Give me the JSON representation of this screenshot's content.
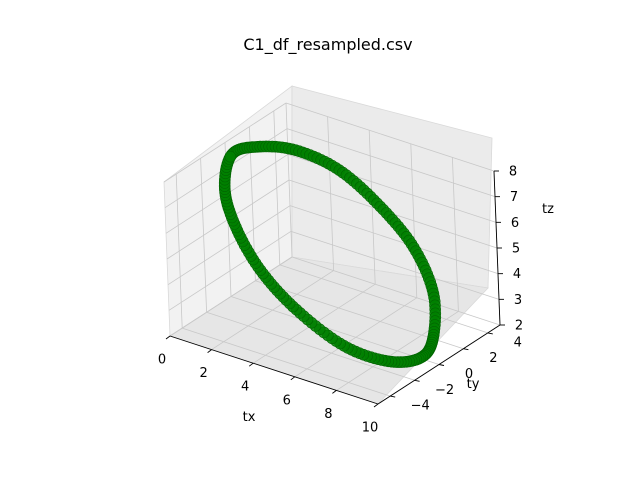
{
  "chart_data": {
    "type": "scatter",
    "title": "C1_df_resampled.csv",
    "xlabel": "tx",
    "ylabel": "ty",
    "zlabel": "tz",
    "xlim": [
      0,
      10
    ],
    "ylim": [
      -5,
      5
    ],
    "zlim": [
      2,
      8
    ],
    "x_ticks": [
      0,
      2,
      4,
      6,
      8,
      10
    ],
    "y_ticks": [
      -4,
      -2,
      0,
      2,
      4
    ],
    "z_ticks": [
      2,
      3,
      4,
      5,
      6,
      7,
      8
    ],
    "x_tick_labels": [
      "0",
      "2",
      "4",
      "6",
      "8",
      "10"
    ],
    "y_tick_labels": [
      "−4",
      "−2",
      "0",
      "2",
      "4"
    ],
    "z_tick_labels": [
      "2",
      "3",
      "4",
      "5",
      "6",
      "7",
      "8"
    ],
    "grid": true,
    "marker_color": "#008000",
    "series": [
      {
        "shape": "closed ellipse loop",
        "points": [
          {
            "x": 0.3,
            "y": 0.0,
            "z": 7.6
          },
          {
            "x": 0.6,
            "y": 1.6,
            "z": 7.5
          },
          {
            "x": 1.6,
            "y": 3.0,
            "z": 7.2
          },
          {
            "x": 3.2,
            "y": 3.8,
            "z": 6.6
          },
          {
            "x": 5.0,
            "y": 4.0,
            "z": 5.6
          },
          {
            "x": 6.8,
            "y": 3.6,
            "z": 4.6
          },
          {
            "x": 8.4,
            "y": 2.4,
            "z": 3.6
          },
          {
            "x": 9.4,
            "y": 0.6,
            "z": 2.7
          },
          {
            "x": 9.6,
            "y": -0.8,
            "z": 2.4
          },
          {
            "x": 9.0,
            "y": -2.4,
            "z": 2.6
          },
          {
            "x": 7.6,
            "y": -3.6,
            "z": 3.2
          },
          {
            "x": 5.6,
            "y": -4.0,
            "z": 4.2
          },
          {
            "x": 3.8,
            "y": -3.8,
            "z": 5.2
          },
          {
            "x": 2.2,
            "y": -3.0,
            "z": 6.2
          },
          {
            "x": 1.0,
            "y": -1.8,
            "z": 7.0
          }
        ]
      }
    ]
  }
}
